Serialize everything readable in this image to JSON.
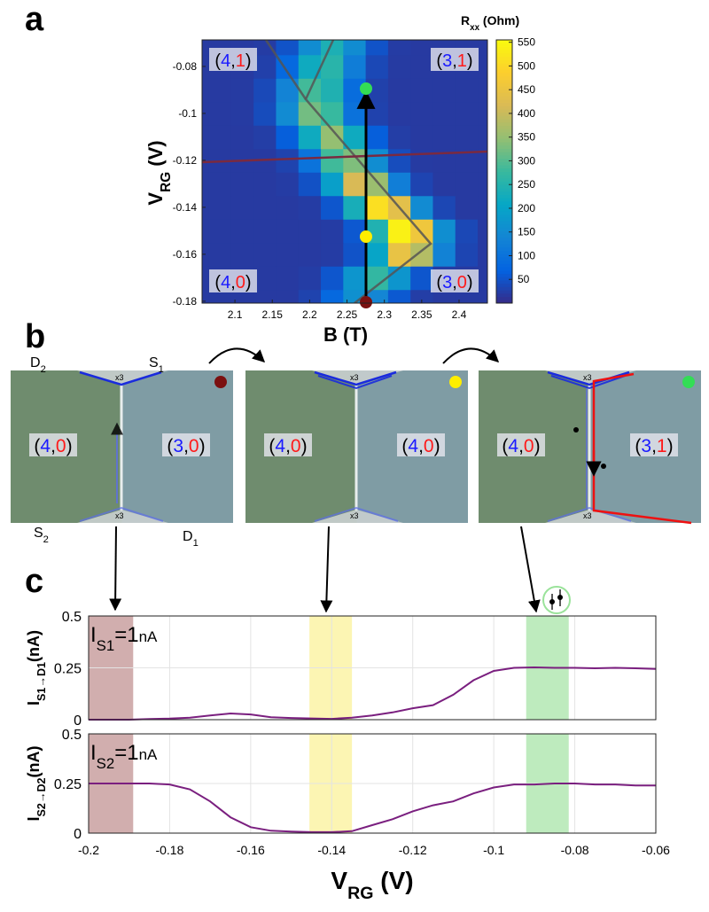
{
  "panel_labels": [
    "a",
    "b",
    "c"
  ],
  "chart_data": [
    {
      "type": "heatmap",
      "x": [
        2.05,
        2.08,
        2.11,
        2.14,
        2.17,
        2.2,
        2.23,
        2.26,
        2.29,
        2.32,
        2.35,
        2.38,
        2.41,
        2.44
      ],
      "y": [
        -0.18,
        -0.17,
        -0.16,
        -0.15,
        -0.14,
        -0.13,
        -0.12,
        -0.11,
        -0.1,
        -0.09,
        -0.08,
        -0.07
      ],
      "z": [
        [
          20,
          20,
          20,
          20,
          20,
          30,
          82,
          162,
          140,
          57,
          24,
          20,
          20,
          20
        ],
        [
          20,
          20,
          20,
          20,
          20,
          23,
          54,
          172,
          270,
          172,
          54,
          23,
          20,
          20
        ],
        [
          20,
          20,
          20,
          20,
          20,
          20,
          22,
          50,
          205,
          446,
          380,
          132,
          33,
          20
        ],
        [
          20,
          20,
          20,
          20,
          20,
          20,
          22,
          56,
          245,
          540,
          460,
          158,
          36,
          20
        ],
        [
          20,
          20,
          20,
          20,
          20,
          22,
          54,
          233,
          512,
          436,
          150,
          35,
          20,
          20
        ],
        [
          20,
          20,
          20,
          20,
          22,
          48,
          192,
          417,
          356,
          125,
          32,
          20,
          20,
          20
        ],
        [
          20,
          20,
          20,
          20,
          30,
          102,
          284,
          332,
          155,
          42,
          21,
          20,
          20,
          20
        ],
        [
          20,
          20,
          20,
          24,
          65,
          221,
          350,
          221,
          65,
          24,
          20,
          20,
          20,
          20
        ],
        [
          20,
          20,
          21,
          41,
          151,
          323,
          276,
          100,
          29,
          20,
          20,
          20,
          20,
          20
        ],
        [
          20,
          20,
          21,
          38,
          135,
          285,
          244,
          90,
          28,
          20,
          20,
          20,
          20,
          20
        ],
        [
          20,
          20,
          20,
          27,
          82,
          220,
          257,
          122,
          36,
          21,
          20,
          20,
          20,
          20
        ],
        [
          20,
          20,
          20,
          22,
          50,
          154,
          240,
          154,
          50,
          22,
          20,
          20,
          20,
          20
        ]
      ],
      "xlim": [
        2.056,
        2.438
      ],
      "ylim": [
        -0.1808,
        -0.0687
      ],
      "xticks": [
        2.1,
        2.15,
        2.2,
        2.25,
        2.3,
        2.35,
        2.4
      ],
      "yticks": [
        -0.18,
        -0.16,
        -0.14,
        -0.12,
        -0.1,
        -0.08
      ],
      "clim": [
        0,
        555
      ],
      "cticks": [
        50,
        100,
        150,
        200,
        250,
        300,
        350,
        400,
        450,
        500,
        550
      ],
      "colormap": [
        "#352a87",
        "#0363e1",
        "#1485d4",
        "#06a7c6",
        "#38b99e",
        "#92bf73",
        "#d9ba56",
        "#fcce2e",
        "#f9fb0e"
      ],
      "xlabel": "B (T)",
      "ylabel": {
        "main": "V",
        "sub": "RG",
        "unit": " (V)"
      },
      "colorbar_title": {
        "main": "R",
        "sub": "xx",
        "unit": " (Ohm)"
      },
      "part_colors": [
        "#000000",
        "#1a1aff",
        "#000000",
        "#ff1a1a",
        "#000000"
      ],
      "annotations": [
        [
          "(",
          "4",
          ",",
          "1",
          ")"
        ],
        [
          "(",
          "3",
          ",",
          "1",
          ")"
        ],
        [
          "(",
          "4",
          ",",
          "0",
          ")"
        ],
        [
          "(",
          "3",
          ",",
          "0",
          ")"
        ]
      ]
    },
    {
      "type": "line",
      "x": [
        -0.2,
        -0.195,
        -0.19,
        -0.185,
        -0.18,
        -0.175,
        -0.17,
        -0.165,
        -0.16,
        -0.155,
        -0.15,
        -0.145,
        -0.14,
        -0.135,
        -0.13,
        -0.125,
        -0.12,
        -0.115,
        -0.11,
        -0.105,
        -0.1,
        -0.095,
        -0.09,
        -0.085,
        -0.08,
        -0.075,
        -0.07,
        -0.065,
        -0.06
      ],
      "series": [
        {
          "color": "#7a1f7f",
          "values": [
            0,
            0,
            0,
            0.003,
            0.005,
            0.01,
            0.02,
            0.03,
            0.025,
            0.012,
            0.008,
            0.006,
            0.004,
            0.01,
            0.02,
            0.035,
            0.055,
            0.07,
            0.12,
            0.19,
            0.235,
            0.25,
            0.252,
            0.25,
            0.25,
            0.248,
            0.25,
            0.248,
            0.245
          ]
        }
      ],
      "xlim": [
        -0.2,
        -0.06
      ],
      "ylim": [
        0,
        0.5
      ],
      "xticks": [
        -0.2,
        -0.18,
        -0.16,
        -0.14,
        -0.12,
        -0.1,
        -0.08,
        -0.06
      ],
      "yticks": [
        0,
        0.25,
        0.5
      ],
      "grid": true,
      "ylabel": {
        "main": "I",
        "sub": "S1→D1",
        "unit": "(nA)"
      },
      "annotation": {
        "main": "I",
        "sub": "S1",
        "eq": "=1",
        "unit": "nA"
      },
      "highlights": [
        {
          "x": [
            -0.2,
            -0.189
          ],
          "color": "#c9a0a0"
        },
        {
          "x": [
            -0.1455,
            -0.135
          ],
          "color": "#fbf3a6"
        },
        {
          "x": [
            -0.092,
            -0.0815
          ],
          "color": "#b3e8b3"
        }
      ]
    },
    {
      "type": "line",
      "x": [
        -0.2,
        -0.195,
        -0.19,
        -0.185,
        -0.18,
        -0.175,
        -0.17,
        -0.165,
        -0.16,
        -0.155,
        -0.15,
        -0.145,
        -0.14,
        -0.135,
        -0.13,
        -0.125,
        -0.12,
        -0.115,
        -0.11,
        -0.105,
        -0.1,
        -0.095,
        -0.09,
        -0.085,
        -0.08,
        -0.075,
        -0.07,
        -0.065,
        -0.06
      ],
      "series": [
        {
          "color": "#7a1f7f",
          "values": [
            0.25,
            0.25,
            0.25,
            0.25,
            0.245,
            0.22,
            0.16,
            0.08,
            0.03,
            0.012,
            0.008,
            0.005,
            0.005,
            0.01,
            0.04,
            0.07,
            0.11,
            0.14,
            0.16,
            0.2,
            0.23,
            0.245,
            0.245,
            0.25,
            0.25,
            0.245,
            0.245,
            0.24,
            0.24
          ]
        }
      ],
      "xlim": [
        -0.2,
        -0.06
      ],
      "ylim": [
        0,
        0.5
      ],
      "xticks": [
        -0.2,
        -0.18,
        -0.16,
        -0.14,
        -0.12,
        -0.1,
        -0.08,
        -0.06
      ],
      "yticks": [
        0,
        0.25,
        0.5
      ],
      "grid": true,
      "ylabel": {
        "main": "I",
        "sub": "S2→D2",
        "unit": "(nA)"
      },
      "xlabel": {
        "main": "V",
        "sub": "RG",
        "unit": " (V)"
      },
      "annotation": {
        "main": "I",
        "sub": "S2",
        "eq": "=1",
        "unit": "nA"
      },
      "highlights": [
        {
          "x": [
            -0.2,
            -0.189
          ],
          "color": "#c9a0a0"
        },
        {
          "x": [
            -0.1455,
            -0.135
          ],
          "color": "#fbf3a6"
        },
        {
          "x": [
            -0.092,
            -0.0815
          ],
          "color": "#b3e8b3"
        }
      ]
    }
  ],
  "diagram": {
    "contacts": [
      {
        "main": "D",
        "sub": "2"
      },
      {
        "main": "S",
        "sub": "1"
      },
      {
        "main": "S",
        "sub": "2"
      },
      {
        "main": "D",
        "sub": "1"
      }
    ],
    "frames": [
      {
        "dot": "#7b1010",
        "labels": [
          [
            "(",
            "4",
            ",",
            "0",
            ")"
          ],
          [
            "(",
            "3",
            ",",
            "0",
            ")"
          ]
        ],
        "multipliers": [
          "x3",
          "x3"
        ]
      },
      {
        "dot": "#ffee00",
        "labels": [
          [
            "(",
            "4",
            ",",
            "0",
            ")"
          ],
          [
            "(",
            "4",
            ",",
            "0",
            ")"
          ]
        ],
        "multipliers": [
          "x3",
          "x3"
        ]
      },
      {
        "dot": "#33dd55",
        "labels": [
          [
            "(",
            "4",
            ",",
            "0",
            ")"
          ],
          [
            "(",
            "3",
            ",",
            "1",
            ")"
          ]
        ],
        "multipliers": [
          "x3",
          "x3"
        ]
      }
    ]
  }
}
